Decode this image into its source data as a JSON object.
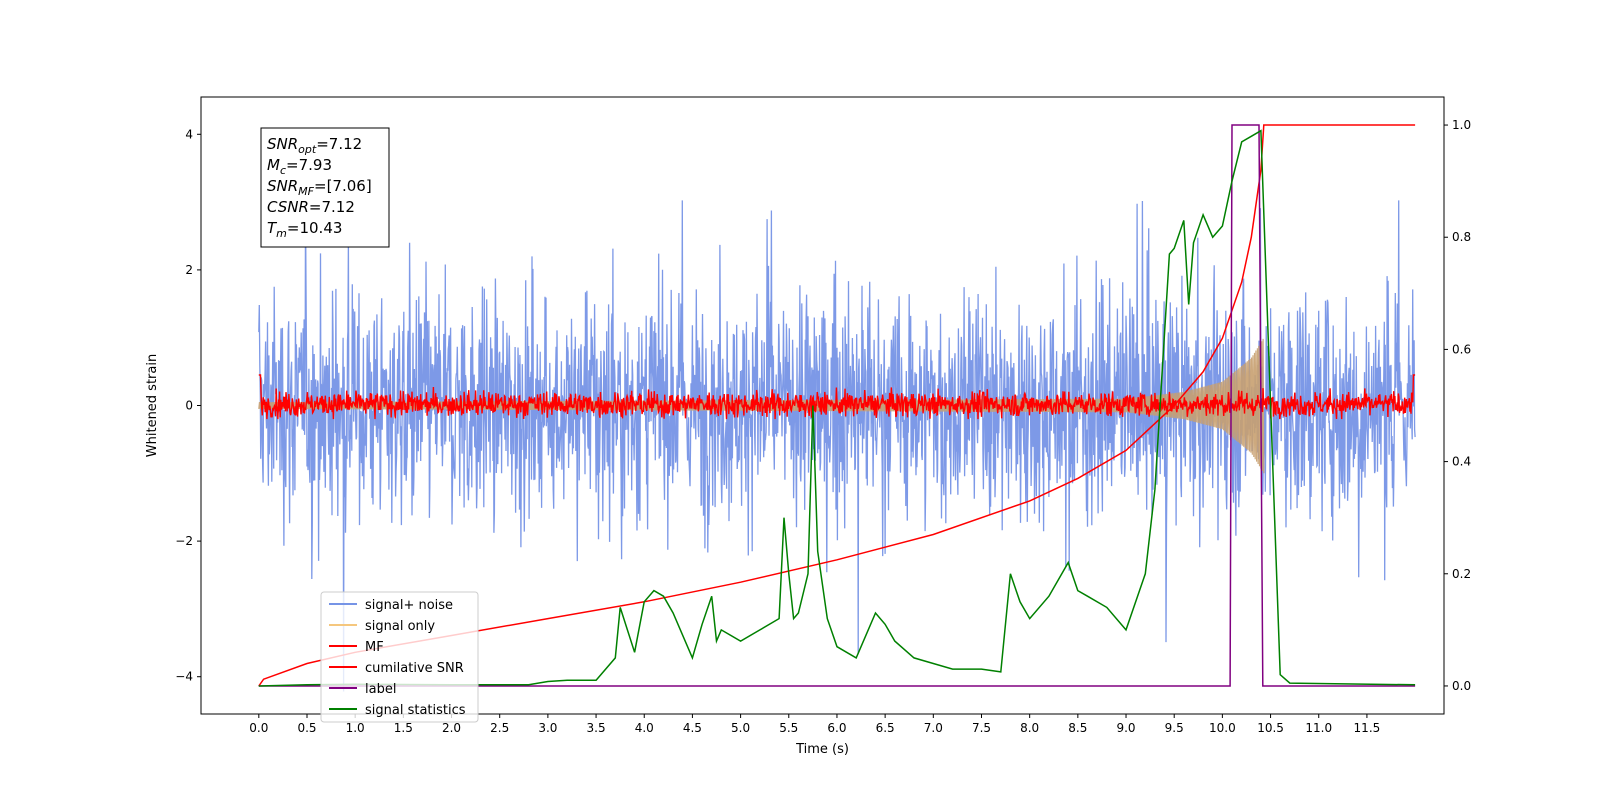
{
  "chart_data": {
    "type": "line",
    "xlabel": "Time (s)",
    "ylabel": "Whitened strain",
    "xlim": [
      -0.6,
      12.3
    ],
    "ylim": [
      -4.55,
      4.55
    ],
    "y2lim": [
      -0.05,
      1.05
    ],
    "x_ticks": [
      "0.0",
      "0.5",
      "1.0",
      "1.5",
      "2.0",
      "2.5",
      "3.0",
      "3.5",
      "4.0",
      "4.5",
      "5.0",
      "5.5",
      "6.0",
      "6.5",
      "7.0",
      "7.5",
      "8.0",
      "8.5",
      "9.0",
      "9.5",
      "10.0",
      "10.5",
      "11.0",
      "11.5"
    ],
    "x_tick_values": [
      0,
      0.5,
      1,
      1.5,
      2,
      2.5,
      3,
      3.5,
      4,
      4.5,
      5,
      5.5,
      6,
      6.5,
      7,
      7.5,
      8,
      8.5,
      9,
      9.5,
      10,
      10.5,
      11,
      11.5
    ],
    "y_ticks": [
      "4",
      "2",
      "0",
      "−2",
      "−4"
    ],
    "y_tick_values": [
      4,
      2,
      0,
      -2,
      -4
    ],
    "y2_ticks": [
      "1.0",
      "0.8",
      "0.6",
      "0.4",
      "0.2",
      "0.0"
    ],
    "y2_tick_values": [
      1,
      0.8,
      0.6,
      0.4,
      0.2,
      0
    ],
    "grid": false,
    "legend_position": "lower-left",
    "annotation": {
      "lines": [
        {
          "base": "SNR",
          "sub": "opt",
          "rest": "=7.12"
        },
        {
          "base": "M",
          "sub": "c",
          "rest": "=7.93"
        },
        {
          "base": "SNR",
          "sub": "MF",
          "rest": "=[7.06]"
        },
        {
          "base": "CSNR",
          "sub": "",
          "rest": "=7.12"
        },
        {
          "base": "T",
          "sub": "m",
          "rest": "=10.43"
        }
      ]
    },
    "series": [
      {
        "name": "signal+ noise",
        "color": "#7694e6",
        "axis": "left",
        "x_range": [
          0,
          12.0
        ],
        "amplitude": 2.5
      },
      {
        "name": "signal only",
        "color": "#f5c77e",
        "axis": "left",
        "x_range": [
          0,
          10.43
        ],
        "envelope": {
          "x": [
            0,
            9.0,
            9.6,
            10.0,
            10.3,
            10.43
          ],
          "y": [
            0.05,
            0.1,
            0.2,
            0.35,
            0.7,
            1.0
          ]
        }
      },
      {
        "name": "MF",
        "color": "#ff0000",
        "axis": "left",
        "x_range": [
          0,
          12.0
        ],
        "amplitude": 0.25
      },
      {
        "name": "cumilative SNR",
        "color": "#ff0000",
        "axis": "right",
        "x": [
          0,
          0.05,
          0.5,
          1,
          2,
          3,
          4,
          5,
          6,
          7,
          8,
          8.5,
          9,
          9.5,
          9.8,
          10,
          10.2,
          10.3,
          10.4,
          10.43,
          12.0
        ],
        "y": [
          0.0,
          0.012,
          0.04,
          0.06,
          0.09,
          0.12,
          0.15,
          0.185,
          0.225,
          0.27,
          0.33,
          0.37,
          0.42,
          0.5,
          0.56,
          0.62,
          0.72,
          0.8,
          0.92,
          1.0,
          1.0
        ]
      },
      {
        "name": "label",
        "color": "#800080",
        "axis": "right",
        "x": [
          0,
          10.08,
          10.1,
          10.38,
          10.42,
          12.0
        ],
        "y": [
          0,
          0,
          1,
          1,
          0,
          0
        ]
      },
      {
        "name": "signal statistics",
        "color": "#008000",
        "axis": "right",
        "x": [
          0,
          0.5,
          1,
          2,
          2.8,
          3.0,
          3.2,
          3.5,
          3.7,
          3.75,
          3.9,
          4.0,
          4.1,
          4.2,
          4.3,
          4.5,
          4.6,
          4.7,
          4.75,
          4.8,
          5.0,
          5.2,
          5.4,
          5.45,
          5.5,
          5.55,
          5.6,
          5.7,
          5.75,
          5.8,
          5.9,
          6.0,
          6.2,
          6.4,
          6.5,
          6.6,
          6.8,
          7.0,
          7.2,
          7.5,
          7.7,
          7.8,
          7.9,
          8.0,
          8.2,
          8.4,
          8.5,
          8.6,
          8.8,
          9.0,
          9.2,
          9.3,
          9.45,
          9.5,
          9.6,
          9.65,
          9.7,
          9.8,
          9.9,
          10.0,
          10.1,
          10.2,
          10.3,
          10.4,
          10.5,
          10.6,
          10.7,
          12.0
        ],
        "y": [
          0,
          0.002,
          0.003,
          0.002,
          0.002,
          0.008,
          0.01,
          0.01,
          0.05,
          0.14,
          0.06,
          0.15,
          0.17,
          0.16,
          0.13,
          0.05,
          0.11,
          0.16,
          0.08,
          0.1,
          0.08,
          0.1,
          0.12,
          0.3,
          0.2,
          0.12,
          0.13,
          0.2,
          0.5,
          0.24,
          0.12,
          0.07,
          0.05,
          0.13,
          0.11,
          0.08,
          0.05,
          0.04,
          0.03,
          0.03,
          0.025,
          0.2,
          0.15,
          0.12,
          0.16,
          0.22,
          0.17,
          0.16,
          0.14,
          0.1,
          0.2,
          0.35,
          0.77,
          0.78,
          0.83,
          0.68,
          0.79,
          0.84,
          0.8,
          0.82,
          0.9,
          0.97,
          0.98,
          0.99,
          0.5,
          0.02,
          0.005,
          0.002
        ]
      }
    ]
  }
}
